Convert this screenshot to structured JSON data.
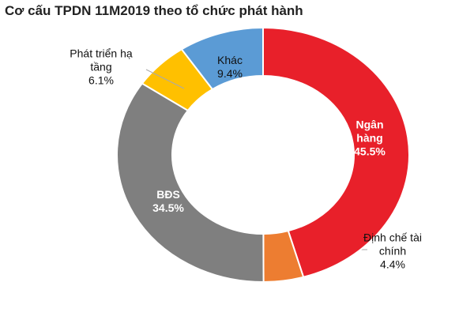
{
  "chart_data": {
    "type": "donut",
    "title": "Cơ cấu TPDN 11M2019 theo tổ chức phát hành",
    "categories": [
      "Ngân hàng",
      "Định chế tài chính",
      "BĐS",
      "Phát triển hạ tầng",
      "Khác"
    ],
    "values": [
      45.5,
      4.4,
      34.5,
      6.1,
      9.4
    ],
    "value_labels": [
      "45.5%",
      "4.4%",
      "34.5%",
      "6.1%",
      "9.4%"
    ],
    "colors": [
      "#e8202a",
      "#ed7d31",
      "#7f7f7f",
      "#ffc000",
      "#5b9bd5"
    ]
  }
}
